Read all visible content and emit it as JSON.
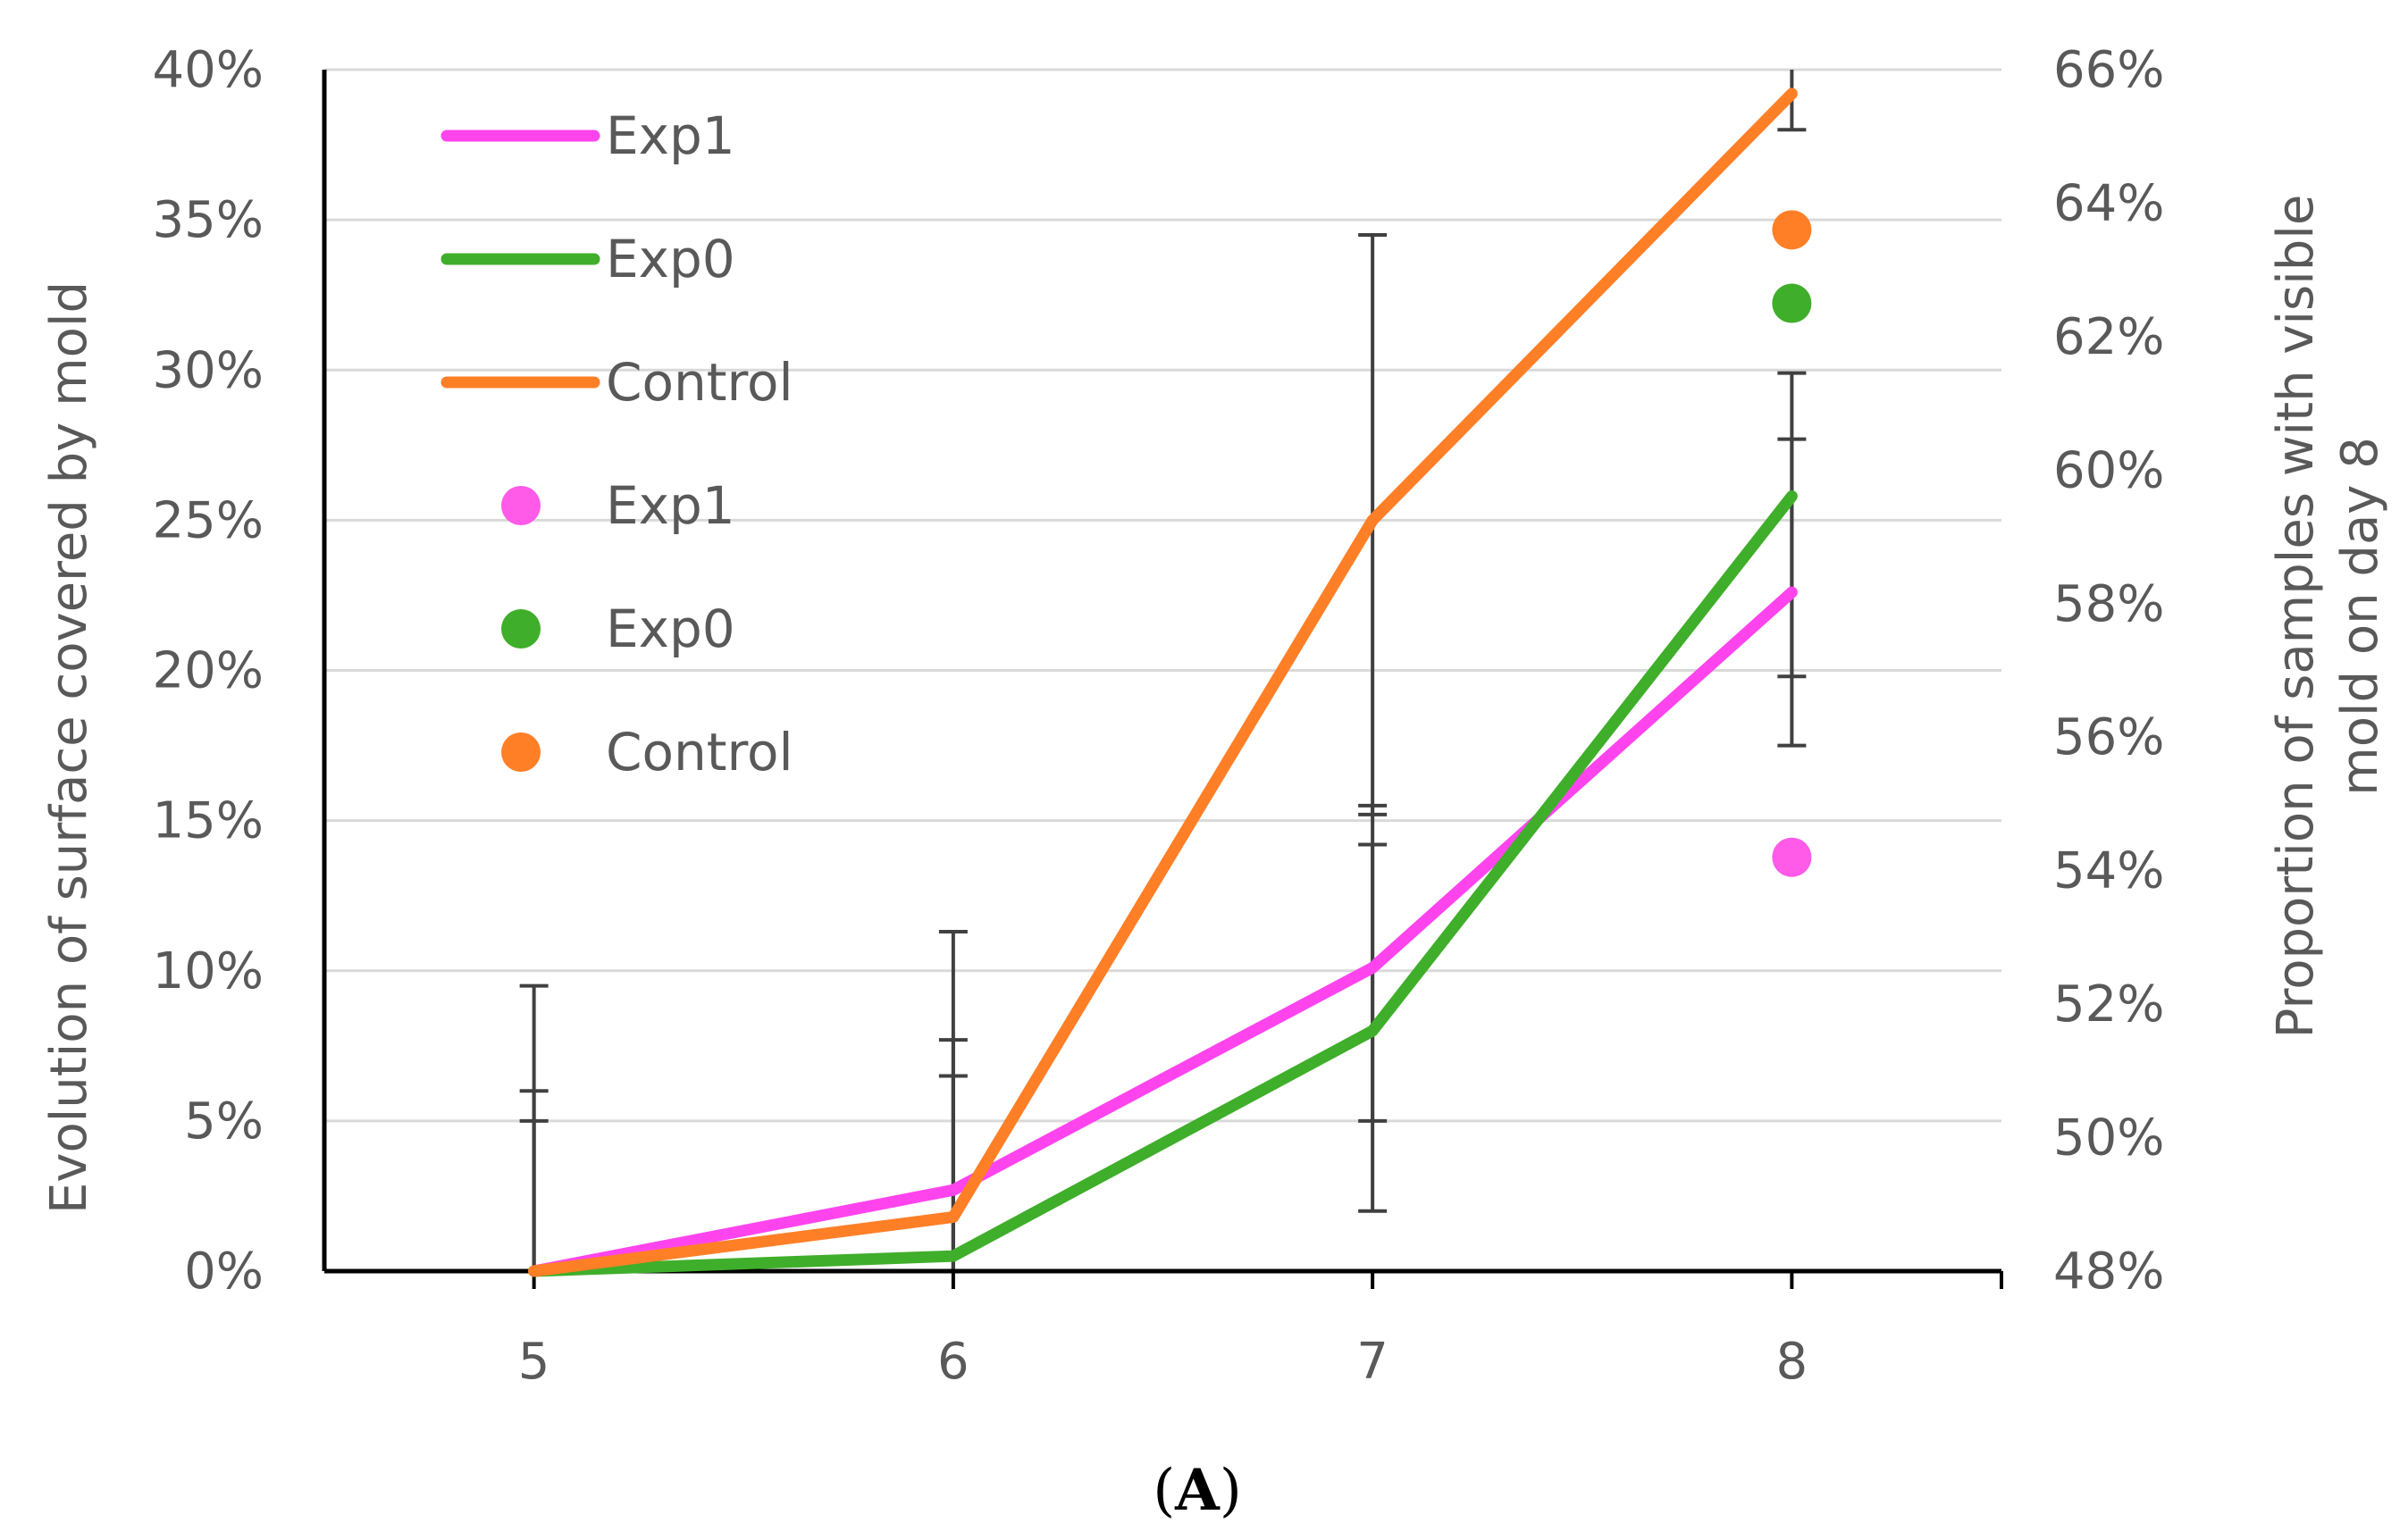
{
  "chart_data": {
    "type": "line",
    "x": [
      5,
      6,
      7,
      8
    ],
    "x_tick_labels": [
      "5",
      "6",
      "7",
      "8"
    ],
    "xlim": [
      4.5,
      8.5
    ],
    "ylim": [
      0,
      40
    ],
    "y_tick_labels": [
      "0%",
      "5%",
      "10%",
      "15%",
      "20%",
      "25%",
      "30%",
      "35%",
      "40%"
    ],
    "y2lim": [
      48,
      66
    ],
    "y2_tick_labels": [
      "48%",
      "50%",
      "52%",
      "54%",
      "56%",
      "58%",
      "60%",
      "62%",
      "64%",
      "66%"
    ],
    "ylabel": "Evolution of surface covered by mold",
    "y2label_line1": "Proportion of samples with visible",
    "y2label_line2": "mold on day 8",
    "grid": true,
    "legend_position": "top-left",
    "series": [
      {
        "name": "Exp1",
        "color": "#ff44ee",
        "values": [
          0,
          2.7,
          10.1,
          22.6
        ],
        "error_low": [
          0,
          0,
          5.0,
          17.5
        ],
        "error_high": [
          6.0,
          7.7,
          15.5,
          27.7
        ]
      },
      {
        "name": "Exp0",
        "color": "#3fae2a",
        "values": [
          0,
          0.5,
          8.0,
          25.8
        ],
        "error_low": [
          0,
          0,
          2.0,
          19.8
        ],
        "error_high": [
          5.0,
          6.5,
          14.2,
          29.9
        ]
      },
      {
        "name": "Control",
        "color": "#ff7f27",
        "values": [
          0,
          1.8,
          25.0,
          39.2
        ],
        "error_low": [
          0,
          0,
          15.2,
          38.0
        ],
        "error_high": [
          9.5,
          11.3,
          34.5,
          40.0
        ]
      }
    ],
    "markers": [
      {
        "name": "Exp1",
        "color": "#ff5ae8",
        "x": 8,
        "y2": 54.2
      },
      {
        "name": "Exp0",
        "color": "#3fae2a",
        "x": 8,
        "y2": 62.5
      },
      {
        "name": "Control",
        "color": "#ff7f27",
        "x": 8,
        "y2": 63.6
      }
    ]
  },
  "caption": {
    "open": "(",
    "letter": "A",
    "close": ")"
  }
}
